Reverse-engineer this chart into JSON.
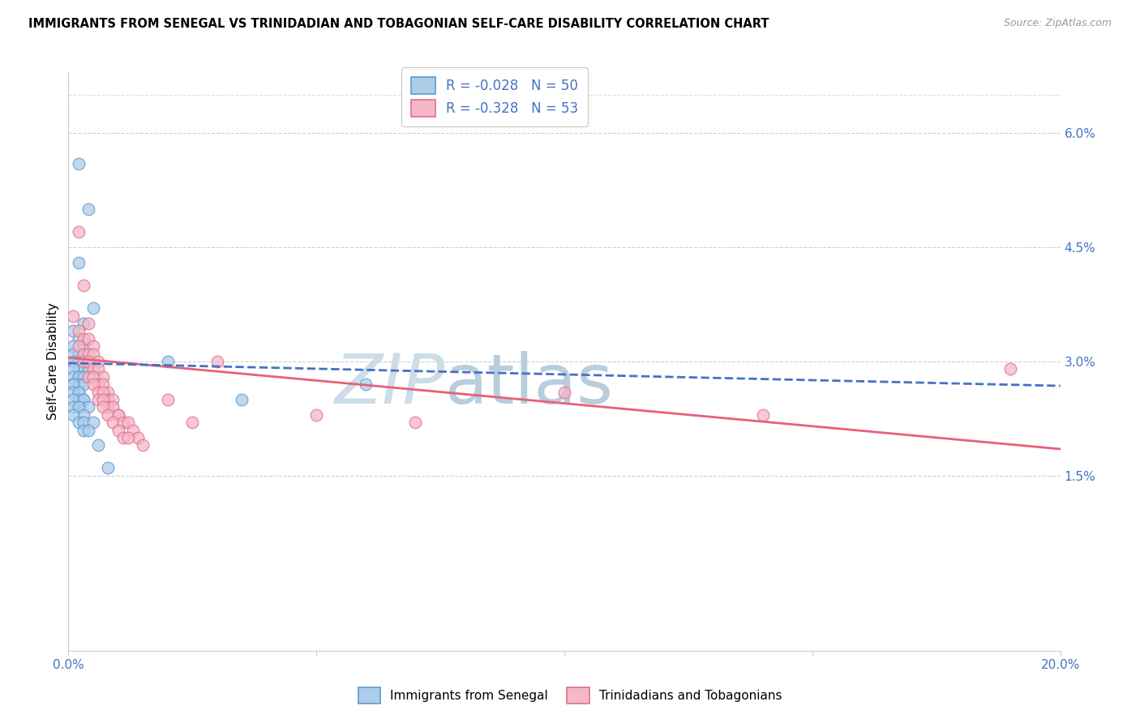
{
  "title": "IMMIGRANTS FROM SENEGAL VS TRINIDADIAN AND TOBAGONIAN SELF-CARE DISABILITY CORRELATION CHART",
  "source": "Source: ZipAtlas.com",
  "ylabel": "Self-Care Disability",
  "right_yticklabels": [
    "",
    "1.5%",
    "3.0%",
    "4.5%",
    "6.0%"
  ],
  "right_ytick_vals": [
    0.0,
    0.015,
    0.03,
    0.045,
    0.06
  ],
  "xmin": 0.0,
  "xmax": 0.2,
  "ymin": -0.008,
  "ymax": 0.068,
  "legend1_label": "R = -0.028   N = 50",
  "legend2_label": "R = -0.328   N = 53",
  "bottom_label1": "Immigrants from Senegal",
  "bottom_label2": "Trinidadians and Tobagonians",
  "blue_color": "#aecde8",
  "pink_color": "#f4b8c8",
  "blue_edge": "#5b9bd5",
  "pink_edge": "#e07090",
  "blue_trend_color": "#4472c4",
  "pink_trend_color": "#e8607a",
  "watermark_zip": "ZIP",
  "watermark_atlas": "atlas",
  "watermark_color_zip": "#c8dff0",
  "watermark_color_atlas": "#b8d0e8",
  "grid_color": "#bbbbbb",
  "blue_trend_x": [
    0.0,
    0.2
  ],
  "blue_trend_y": [
    0.0298,
    0.0268
  ],
  "pink_trend_x": [
    0.0,
    0.2
  ],
  "pink_trend_y": [
    0.0305,
    0.0185
  ],
  "blue_x": [
    0.002,
    0.004,
    0.002,
    0.005,
    0.003,
    0.001,
    0.002,
    0.001,
    0.003,
    0.002,
    0.001,
    0.003,
    0.002,
    0.004,
    0.001,
    0.002,
    0.003,
    0.001,
    0.004,
    0.002,
    0.001,
    0.002,
    0.003,
    0.001,
    0.002,
    0.003,
    0.001,
    0.002,
    0.001,
    0.002,
    0.003,
    0.002,
    0.001,
    0.003,
    0.002,
    0.001,
    0.004,
    0.002,
    0.003,
    0.001,
    0.002,
    0.003,
    0.005,
    0.003,
    0.004,
    0.02,
    0.035,
    0.06,
    0.008,
    0.006
  ],
  "blue_y": [
    0.056,
    0.05,
    0.043,
    0.037,
    0.035,
    0.034,
    0.033,
    0.032,
    0.032,
    0.031,
    0.031,
    0.03,
    0.03,
    0.03,
    0.03,
    0.029,
    0.029,
    0.029,
    0.029,
    0.028,
    0.028,
    0.028,
    0.028,
    0.027,
    0.027,
    0.027,
    0.027,
    0.026,
    0.026,
    0.026,
    0.025,
    0.025,
    0.025,
    0.025,
    0.024,
    0.024,
    0.024,
    0.024,
    0.023,
    0.023,
    0.022,
    0.022,
    0.022,
    0.021,
    0.021,
    0.03,
    0.025,
    0.027,
    0.016,
    0.019
  ],
  "pink_x": [
    0.002,
    0.003,
    0.001,
    0.004,
    0.002,
    0.003,
    0.004,
    0.002,
    0.005,
    0.003,
    0.004,
    0.005,
    0.003,
    0.006,
    0.004,
    0.005,
    0.006,
    0.004,
    0.007,
    0.005,
    0.006,
    0.007,
    0.005,
    0.008,
    0.006,
    0.007,
    0.008,
    0.006,
    0.009,
    0.007,
    0.008,
    0.009,
    0.007,
    0.01,
    0.008,
    0.01,
    0.009,
    0.011,
    0.012,
    0.01,
    0.013,
    0.011,
    0.014,
    0.012,
    0.015,
    0.02,
    0.025,
    0.03,
    0.05,
    0.07,
    0.1,
    0.14,
    0.19
  ],
  "pink_y": [
    0.047,
    0.04,
    0.036,
    0.035,
    0.034,
    0.033,
    0.033,
    0.032,
    0.032,
    0.031,
    0.031,
    0.031,
    0.03,
    0.03,
    0.03,
    0.029,
    0.029,
    0.028,
    0.028,
    0.028,
    0.027,
    0.027,
    0.027,
    0.026,
    0.026,
    0.026,
    0.025,
    0.025,
    0.025,
    0.025,
    0.024,
    0.024,
    0.024,
    0.023,
    0.023,
    0.023,
    0.022,
    0.022,
    0.022,
    0.021,
    0.021,
    0.02,
    0.02,
    0.02,
    0.019,
    0.025,
    0.022,
    0.03,
    0.023,
    0.022,
    0.026,
    0.023,
    0.029
  ]
}
